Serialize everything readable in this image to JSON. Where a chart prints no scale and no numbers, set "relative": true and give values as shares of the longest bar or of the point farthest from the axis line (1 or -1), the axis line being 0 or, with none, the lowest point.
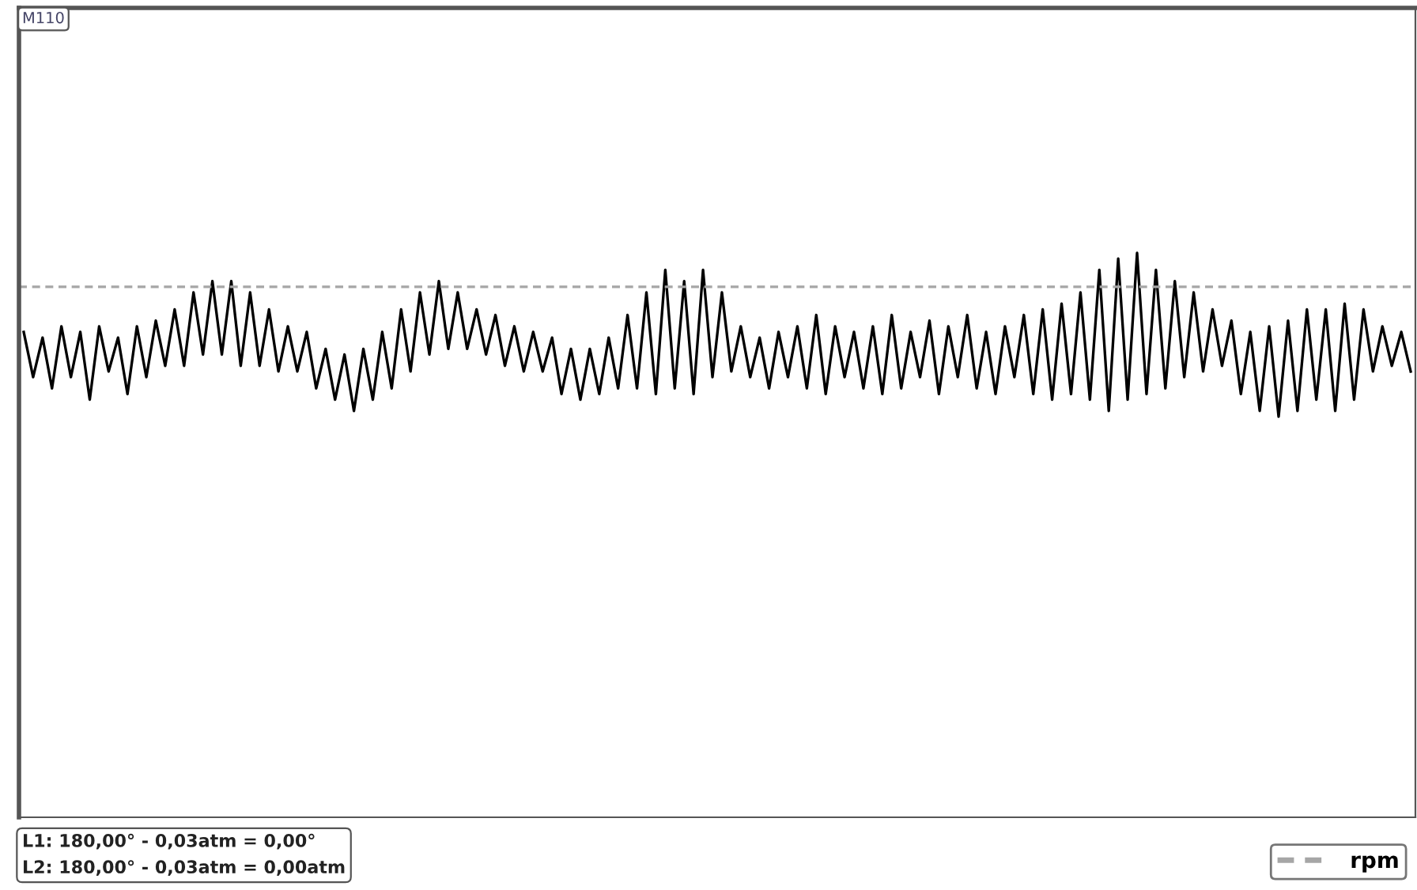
{
  "chart_data": {
    "type": "line",
    "relative": true,
    "legend": "bottom right",
    "marker": "none",
    "line_style": "solid",
    "annotations": [
      "M110",
      "L1: 180,00° - 0,03atm = 0,00°",
      "L2: 180,00° - 0,03atm = 0,00atm"
    ],
    "ref_lines": [
      {
        "axis": "y",
        "value": 0.94,
        "label": "rpm",
        "color": "#a6a6a6",
        "line_style": "dashed"
      }
    ],
    "categories": [
      null,
      null,
      null,
      null,
      null,
      null,
      null,
      null,
      null,
      null,
      null,
      null,
      null,
      null,
      null,
      null,
      null,
      null,
      null,
      null,
      null,
      null,
      null,
      null,
      null,
      null,
      null,
      null,
      null,
      null,
      null,
      null,
      null,
      null,
      null,
      null,
      null,
      null,
      null,
      null,
      null,
      null,
      null,
      null,
      null,
      null,
      null,
      null,
      null,
      null,
      null,
      null,
      null,
      null,
      null,
      null,
      null,
      null,
      null,
      null,
      null,
      null,
      null,
      null,
      null,
      null,
      null,
      null,
      null,
      null,
      null,
      null,
      null,
      null,
      null,
      null,
      null,
      null,
      null,
      null,
      null,
      null,
      null,
      null,
      null,
      null,
      null,
      null,
      null,
      null,
      null,
      null,
      null,
      null,
      null,
      null,
      null,
      null,
      null,
      null,
      null,
      null,
      null,
      null,
      null,
      null,
      null,
      null,
      null,
      null,
      null,
      null,
      null,
      null,
      null,
      null,
      null,
      null,
      null,
      null,
      null,
      null,
      null,
      null,
      null,
      null,
      null,
      null,
      null,
      null,
      null,
      null,
      null,
      null,
      null,
      null,
      null,
      null,
      null,
      null,
      null,
      null,
      null,
      null,
      null,
      null,
      null,
      null
    ],
    "series": [
      {
        "color": "#000000",
        "values": [
          0.86,
          0.78,
          0.85,
          0.76,
          0.87,
          0.78,
          0.86,
          0.74,
          0.87,
          0.79,
          0.85,
          0.75,
          0.87,
          0.78,
          0.88,
          0.8,
          0.9,
          0.8,
          0.93,
          0.82,
          0.95,
          0.82,
          0.95,
          0.8,
          0.93,
          0.8,
          0.9,
          0.79,
          0.87,
          0.79,
          0.86,
          0.76,
          0.83,
          0.74,
          0.82,
          0.72,
          0.83,
          0.74,
          0.86,
          0.76,
          0.9,
          0.79,
          0.93,
          0.82,
          0.95,
          0.83,
          0.93,
          0.83,
          0.9,
          0.82,
          0.89,
          0.8,
          0.87,
          0.79,
          0.86,
          0.79,
          0.85,
          0.75,
          0.83,
          0.74,
          0.83,
          0.75,
          0.85,
          0.76,
          0.89,
          0.76,
          0.93,
          0.75,
          0.97,
          0.76,
          0.95,
          0.75,
          0.97,
          0.78,
          0.93,
          0.79,
          0.87,
          0.78,
          0.85,
          0.76,
          0.86,
          0.78,
          0.87,
          0.76,
          0.89,
          0.75,
          0.87,
          0.78,
          0.86,
          0.76,
          0.87,
          0.75,
          0.89,
          0.76,
          0.86,
          0.78,
          0.88,
          0.75,
          0.87,
          0.78,
          0.89,
          0.76,
          0.86,
          0.75,
          0.87,
          0.78,
          0.89,
          0.75,
          0.9,
          0.74,
          0.91,
          0.75,
          0.93,
          0.74,
          0.97,
          0.72,
          0.99,
          0.74,
          1.0,
          0.75,
          0.97,
          0.76,
          0.95,
          0.78,
          0.93,
          0.79,
          0.9,
          0.8,
          0.88,
          0.75,
          0.86,
          0.72,
          0.87,
          0.71,
          0.88,
          0.72,
          0.9,
          0.74,
          0.9,
          0.72,
          0.91,
          0.74,
          0.9,
          0.79,
          0.87,
          0.8,
          0.86,
          0.79
        ]
      }
    ]
  }
}
